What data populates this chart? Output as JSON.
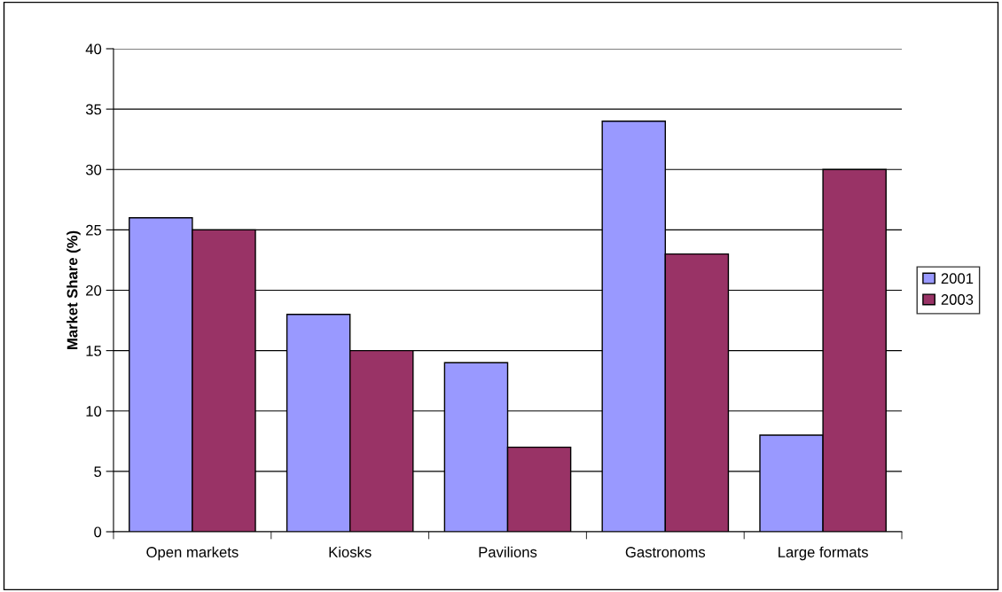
{
  "chart_data": {
    "type": "bar",
    "ylabel": "Market Share (%)",
    "categories": [
      "Open markets",
      "Kiosks",
      "Pavilions",
      "Gastronoms",
      "Large formats"
    ],
    "series": [
      {
        "name": "2001",
        "color": "#9999ff",
        "values": [
          26,
          18,
          14,
          34,
          8
        ]
      },
      {
        "name": "2003",
        "color": "#993366",
        "values": [
          25,
          15,
          7,
          23,
          30
        ]
      }
    ],
    "ylim": [
      0,
      40
    ],
    "yticks": [
      0,
      5,
      10,
      15,
      20,
      25,
      30,
      35,
      40
    ],
    "grid": "y",
    "legend": "right"
  }
}
